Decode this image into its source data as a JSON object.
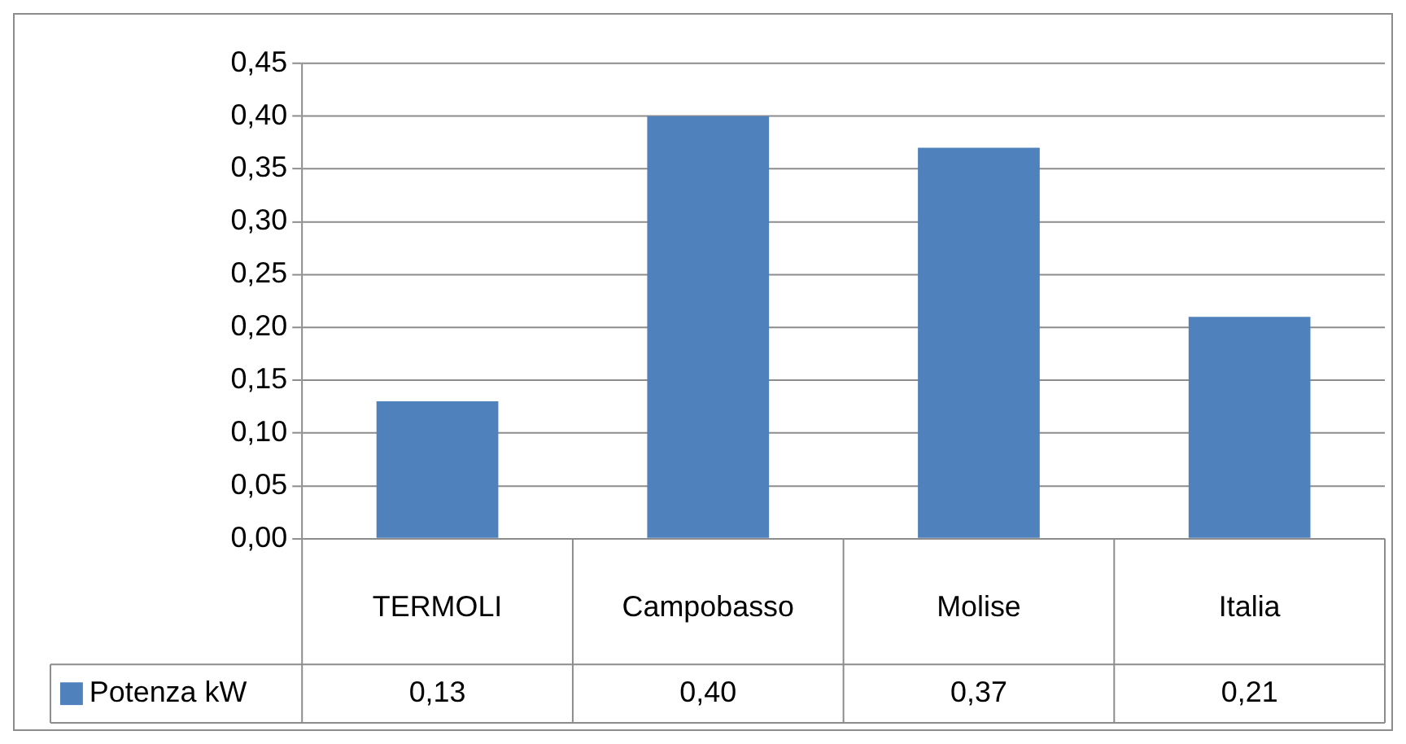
{
  "chart_data": {
    "type": "bar",
    "categories": [
      "TERMOLI",
      "Campobasso",
      "Molise",
      "Italia"
    ],
    "series": [
      {
        "name": "Potenza kW",
        "color": "#4f81bd",
        "values": [
          0.13,
          0.4,
          0.37,
          0.21
        ],
        "value_labels": [
          "0,13",
          "0,40",
          "0,37",
          "0,21"
        ]
      }
    ],
    "ylim": [
      0,
      0.45
    ],
    "yticks": [
      {
        "value": 0,
        "label": "0,00"
      },
      {
        "value": 0.05,
        "label": "0,05"
      },
      {
        "value": 0.1,
        "label": "0,10"
      },
      {
        "value": 0.15,
        "label": "0,15"
      },
      {
        "value": 0.2,
        "label": "0,20"
      },
      {
        "value": 0.25,
        "label": "0,25"
      },
      {
        "value": 0.3,
        "label": "0,30"
      },
      {
        "value": 0.35,
        "label": "0,35"
      },
      {
        "value": 0.4,
        "label": "0,40"
      },
      {
        "value": 0.45,
        "label": "0,45"
      }
    ],
    "grid": "y",
    "legend": "bottom"
  }
}
